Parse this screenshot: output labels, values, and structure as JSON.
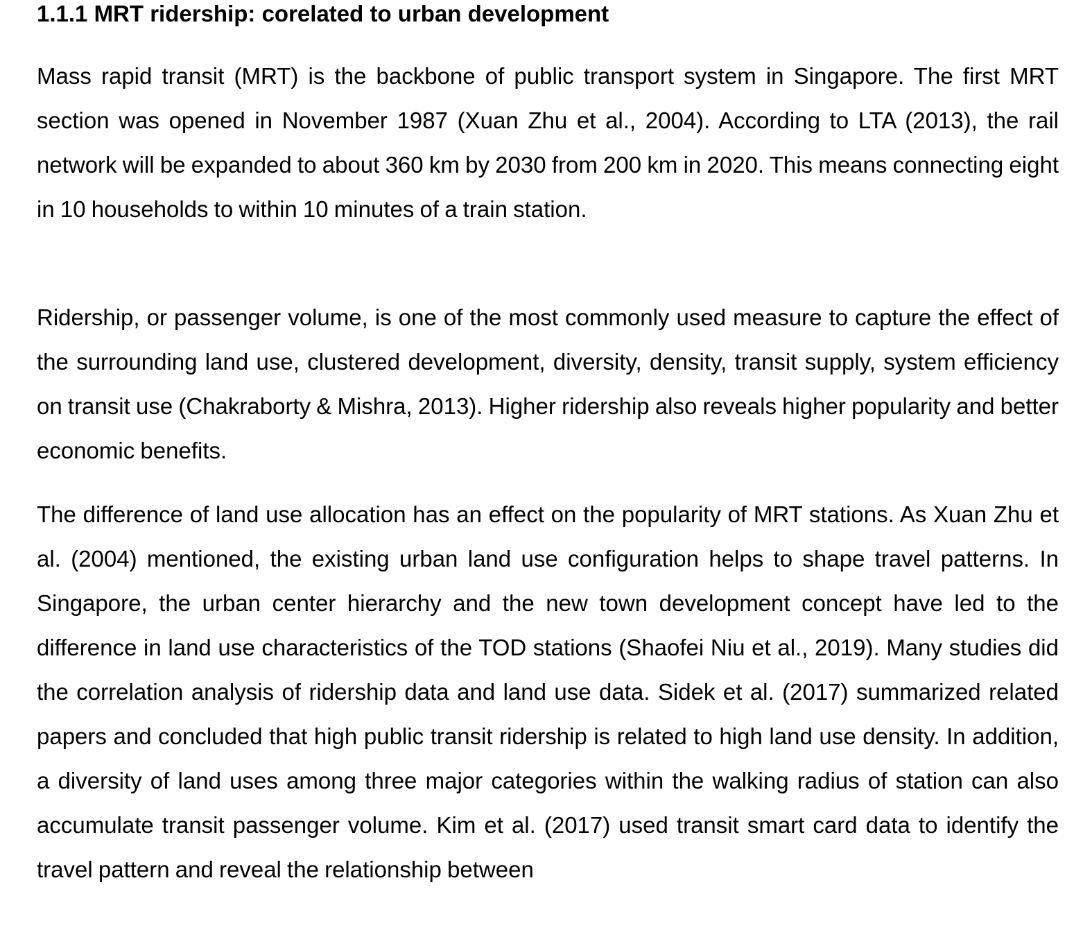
{
  "section": {
    "heading": "1.1.1 MRT ridership: corelated to urban development"
  },
  "paragraphs": [
    "Mass rapid transit (MRT) is the backbone of public transport system in Singapore. The first MRT section was opened in November 1987 (Xuan Zhu et al., 2004). According to LTA (2013), the rail network will be expanded to about 360 km by 2030 from 200 km in 2020. This means connecting eight in 10 households to within 10 minutes of a train station.",
    "Ridership, or passenger volume, is one of the most commonly used measure to capture the effect of the surrounding land use, clustered development, diversity, density, transit supply, system efficiency on transit use (Chakraborty & Mishra, 2013). Higher ridership also reveals higher popularity and better economic benefits.",
    "The difference of land use allocation has an effect on the popularity of MRT stations. As Xuan Zhu et al. (2004) mentioned, the existing urban land use configuration helps to shape travel patterns. In Singapore, the urban center hierarchy and the new town development concept have led to the difference in land use characteristics of the TOD stations (Shaofei Niu et al., 2019). Many studies did the correlation analysis of ridership data and land use data. Sidek et al. (2017) summarized related papers and concluded that high public transit ridership is related to high land use density. In addition, a diversity of land uses among three major categories within the walking radius of station can also accumulate transit passenger volume. Kim et al. (2017) used transit smart card data to identify the travel pattern and reveal the relationship between"
  ]
}
